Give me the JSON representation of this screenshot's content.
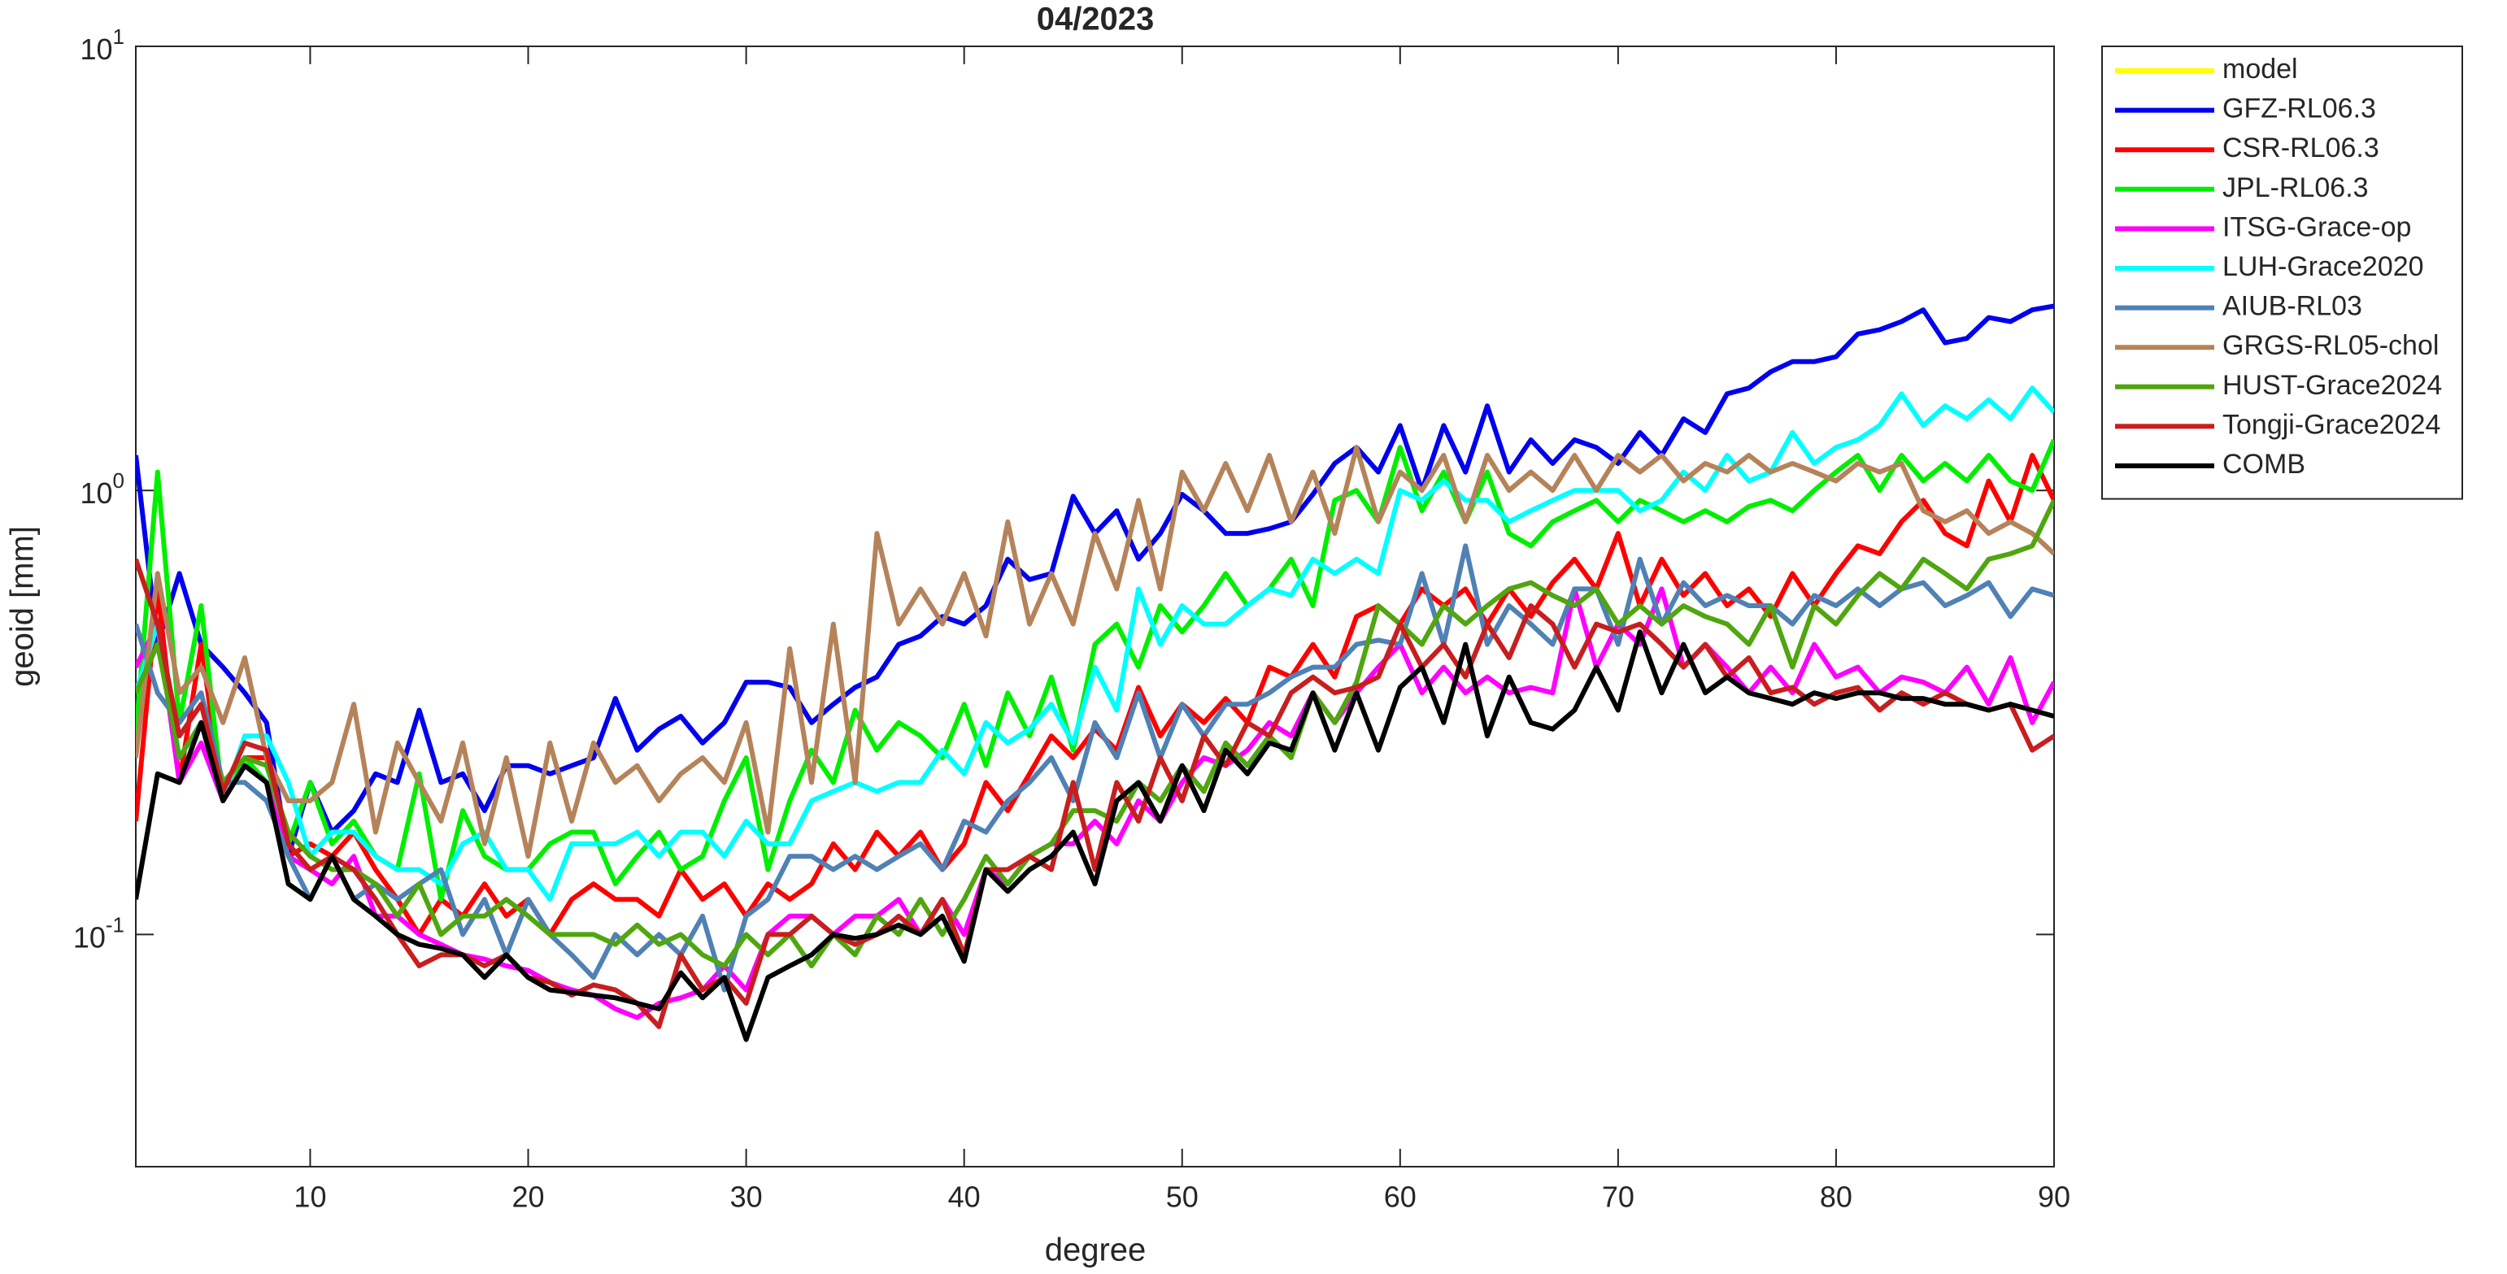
{
  "chart_data": {
    "type": "line",
    "title": "04/2023",
    "x_label": "degree",
    "y_label": "geoid [mm]",
    "log_y": true,
    "legend": "outside-right",
    "x": [
      2,
      3,
      4,
      5,
      6,
      7,
      8,
      9,
      10,
      11,
      12,
      13,
      14,
      15,
      16,
      17,
      18,
      19,
      20,
      21,
      22,
      23,
      24,
      25,
      26,
      27,
      28,
      29,
      30,
      31,
      32,
      33,
      34,
      35,
      36,
      37,
      38,
      39,
      40,
      41,
      42,
      43,
      44,
      45,
      46,
      47,
      48,
      49,
      50,
      51,
      52,
      53,
      54,
      55,
      56,
      57,
      58,
      59,
      60,
      61,
      62,
      63,
      64,
      65,
      66,
      67,
      68,
      69,
      70,
      71,
      72,
      73,
      74,
      75,
      76,
      77,
      78,
      79,
      80,
      81,
      82,
      83,
      84,
      85,
      86,
      87,
      88,
      89,
      90
    ],
    "xlim": [
      2,
      90
    ],
    "xticks": [
      10,
      20,
      30,
      40,
      50,
      60,
      70,
      80,
      90
    ],
    "ylim": [
      0.03,
      10
    ],
    "yticks": [
      {
        "value": 0.1,
        "label": "10^-1"
      },
      {
        "value": 1,
        "label": "10^0"
      },
      {
        "value": 10,
        "label": "10^1"
      }
    ],
    "series": [
      {
        "name": "model",
        "color": "#ffff00",
        "values": [
          null,
          null,
          null,
          null,
          null,
          null,
          null,
          null,
          null,
          null,
          null,
          null,
          null,
          null,
          null,
          null,
          null,
          null,
          null,
          null,
          null,
          null,
          null,
          null,
          null,
          null,
          null,
          null,
          null,
          null,
          null,
          null,
          null,
          null,
          null,
          null,
          null,
          null,
          null,
          null,
          null,
          null,
          null,
          null,
          null,
          null,
          null,
          null,
          null,
          null,
          null,
          null,
          null,
          null,
          null,
          null,
          null,
          null,
          null,
          null,
          null,
          null,
          null,
          null,
          null,
          null,
          null,
          null,
          null,
          null,
          null,
          null,
          null,
          null,
          null,
          null,
          null,
          null,
          null,
          null,
          null,
          null,
          null,
          null,
          null,
          null,
          null,
          null,
          null
        ]
      },
      {
        "name": "GFZ-RL06.3",
        "color": "#0000ee",
        "values": [
          1.2,
          0.45,
          0.65,
          0.45,
          0.4,
          0.35,
          0.3,
          0.15,
          0.22,
          0.17,
          0.19,
          0.23,
          0.22,
          0.32,
          0.22,
          0.23,
          0.19,
          0.24,
          0.24,
          0.23,
          0.24,
          0.25,
          0.34,
          0.26,
          0.29,
          0.31,
          0.27,
          0.3,
          0.37,
          0.37,
          0.36,
          0.3,
          0.33,
          0.36,
          0.38,
          0.45,
          0.47,
          0.52,
          0.5,
          0.55,
          0.7,
          0.63,
          0.65,
          0.97,
          0.8,
          0.9,
          0.7,
          0.8,
          0.98,
          0.9,
          0.8,
          0.8,
          0.82,
          0.85,
          0.98,
          1.15,
          1.25,
          1.1,
          1.4,
          1.0,
          1.4,
          1.1,
          1.55,
          1.1,
          1.3,
          1.15,
          1.3,
          1.25,
          1.15,
          1.35,
          1.2,
          1.45,
          1.35,
          1.65,
          1.7,
          1.85,
          1.95,
          1.95,
          2.0,
          2.25,
          2.3,
          2.4,
          2.55,
          2.15,
          2.2,
          2.45,
          2.4,
          2.55,
          2.6
        ]
      },
      {
        "name": "CSR-RL06.3",
        "color": "#ff0000",
        "values": [
          0.18,
          0.6,
          0.22,
          0.45,
          0.2,
          0.25,
          0.25,
          0.15,
          0.16,
          0.15,
          0.17,
          0.14,
          0.12,
          0.1,
          0.12,
          0.11,
          0.13,
          0.11,
          0.12,
          0.1,
          0.12,
          0.13,
          0.12,
          0.12,
          0.11,
          0.14,
          0.12,
          0.13,
          0.11,
          0.13,
          0.12,
          0.13,
          0.16,
          0.14,
          0.17,
          0.15,
          0.17,
          0.14,
          0.16,
          0.22,
          0.19,
          0.23,
          0.28,
          0.25,
          0.29,
          0.26,
          0.36,
          0.28,
          0.33,
          0.3,
          0.34,
          0.3,
          0.4,
          0.38,
          0.45,
          0.38,
          0.52,
          0.55,
          0.5,
          0.6,
          0.55,
          0.6,
          0.5,
          0.6,
          0.52,
          0.62,
          0.7,
          0.6,
          0.8,
          0.55,
          0.7,
          0.58,
          0.65,
          0.55,
          0.6,
          0.52,
          0.65,
          0.55,
          0.65,
          0.75,
          0.72,
          0.85,
          0.95,
          0.8,
          0.75,
          1.05,
          0.85,
          1.2,
          0.95
        ]
      },
      {
        "name": "JPL-RL06.3",
        "color": "#00ee00",
        "values": [
          0.28,
          1.1,
          0.3,
          0.55,
          0.2,
          0.25,
          0.22,
          0.16,
          0.22,
          0.16,
          0.18,
          0.15,
          0.14,
          0.23,
          0.12,
          0.19,
          0.15,
          0.14,
          0.14,
          0.16,
          0.17,
          0.17,
          0.13,
          0.15,
          0.17,
          0.14,
          0.15,
          0.2,
          0.25,
          0.14,
          0.2,
          0.26,
          0.22,
          0.32,
          0.26,
          0.3,
          0.28,
          0.25,
          0.33,
          0.24,
          0.35,
          0.28,
          0.38,
          0.26,
          0.45,
          0.5,
          0.4,
          0.55,
          0.48,
          0.55,
          0.65,
          0.55,
          0.6,
          0.7,
          0.55,
          0.95,
          1.0,
          0.85,
          1.25,
          0.9,
          1.1,
          0.85,
          1.1,
          0.8,
          0.75,
          0.85,
          0.9,
          0.95,
          0.85,
          0.95,
          0.9,
          0.85,
          0.9,
          0.85,
          0.92,
          0.95,
          0.9,
          1.0,
          1.1,
          1.2,
          1.0,
          1.2,
          1.05,
          1.15,
          1.05,
          1.2,
          1.05,
          1.0,
          1.3
        ]
      },
      {
        "name": "ITSG-Grace-op",
        "color": "#ff00ff",
        "values": [
          0.4,
          0.5,
          0.22,
          0.27,
          0.2,
          0.24,
          0.22,
          0.15,
          0.14,
          0.13,
          0.15,
          0.11,
          0.11,
          0.1,
          0.095,
          0.09,
          0.088,
          0.085,
          0.083,
          0.078,
          0.075,
          0.073,
          0.068,
          0.065,
          0.07,
          0.072,
          0.075,
          0.085,
          0.075,
          0.1,
          0.11,
          0.11,
          0.1,
          0.11,
          0.11,
          0.12,
          0.1,
          0.12,
          0.1,
          0.14,
          0.13,
          0.15,
          0.16,
          0.16,
          0.18,
          0.16,
          0.2,
          0.18,
          0.22,
          0.25,
          0.24,
          0.26,
          0.3,
          0.28,
          0.35,
          0.3,
          0.35,
          0.4,
          0.45,
          0.35,
          0.4,
          0.35,
          0.38,
          0.35,
          0.36,
          0.35,
          0.6,
          0.4,
          0.5,
          0.45,
          0.6,
          0.4,
          0.45,
          0.4,
          0.35,
          0.4,
          0.35,
          0.45,
          0.38,
          0.4,
          0.35,
          0.38,
          0.37,
          0.35,
          0.4,
          0.33,
          0.42,
          0.3,
          0.37
        ]
      },
      {
        "name": "LUH-Grace2020",
        "color": "#00ffff",
        "values": [
          0.35,
          0.5,
          0.25,
          0.3,
          0.2,
          0.28,
          0.28,
          0.22,
          0.15,
          0.17,
          0.17,
          0.15,
          0.14,
          0.14,
          0.13,
          0.16,
          0.17,
          0.14,
          0.14,
          0.12,
          0.16,
          0.16,
          0.16,
          0.17,
          0.15,
          0.17,
          0.17,
          0.15,
          0.18,
          0.16,
          0.16,
          0.2,
          0.21,
          0.22,
          0.21,
          0.22,
          0.22,
          0.26,
          0.23,
          0.3,
          0.27,
          0.29,
          0.33,
          0.27,
          0.4,
          0.32,
          0.6,
          0.45,
          0.55,
          0.5,
          0.5,
          0.55,
          0.6,
          0.58,
          0.7,
          0.65,
          0.7,
          0.65,
          1.0,
          0.95,
          1.05,
          0.95,
          0.95,
          0.85,
          0.9,
          0.95,
          1.0,
          1.0,
          1.0,
          0.9,
          0.95,
          1.1,
          1.0,
          1.2,
          1.05,
          1.1,
          1.35,
          1.15,
          1.25,
          1.3,
          1.4,
          1.65,
          1.4,
          1.55,
          1.45,
          1.6,
          1.45,
          1.7,
          1.5
        ]
      },
      {
        "name": "AIUB-RL03",
        "color": "#4f81b5",
        "values": [
          0.5,
          0.35,
          0.3,
          0.35,
          0.22,
          0.22,
          0.2,
          0.15,
          0.12,
          0.15,
          0.12,
          0.13,
          0.12,
          0.13,
          0.14,
          0.1,
          0.12,
          0.09,
          0.12,
          0.1,
          0.09,
          0.08,
          0.1,
          0.09,
          0.1,
          0.09,
          0.11,
          0.075,
          0.11,
          0.12,
          0.15,
          0.15,
          0.14,
          0.15,
          0.14,
          0.15,
          0.16,
          0.14,
          0.18,
          0.17,
          0.2,
          0.22,
          0.25,
          0.2,
          0.3,
          0.25,
          0.35,
          0.25,
          0.33,
          0.28,
          0.33,
          0.33,
          0.35,
          0.38,
          0.4,
          0.4,
          0.45,
          0.46,
          0.45,
          0.65,
          0.45,
          0.75,
          0.45,
          0.55,
          0.5,
          0.45,
          0.6,
          0.6,
          0.45,
          0.7,
          0.5,
          0.62,
          0.55,
          0.58,
          0.55,
          0.55,
          0.5,
          0.58,
          0.55,
          0.6,
          0.55,
          0.6,
          0.62,
          0.55,
          0.58,
          0.62,
          0.52,
          0.6,
          0.58
        ]
      },
      {
        "name": "GRGS-RL05-chol",
        "color": "#b5835a",
        "values": [
          0.25,
          0.65,
          0.35,
          0.4,
          0.3,
          0.42,
          0.25,
          0.2,
          0.2,
          0.22,
          0.33,
          0.17,
          0.27,
          0.22,
          0.18,
          0.27,
          0.16,
          0.25,
          0.15,
          0.27,
          0.18,
          0.27,
          0.22,
          0.24,
          0.2,
          0.23,
          0.25,
          0.22,
          0.3,
          0.17,
          0.44,
          0.22,
          0.5,
          0.22,
          0.8,
          0.5,
          0.6,
          0.5,
          0.65,
          0.47,
          0.85,
          0.5,
          0.65,
          0.5,
          0.8,
          0.6,
          0.95,
          0.6,
          1.1,
          0.9,
          1.15,
          0.9,
          1.2,
          0.85,
          1.1,
          0.8,
          1.25,
          0.85,
          1.1,
          1.0,
          1.2,
          0.85,
          1.2,
          1.0,
          1.1,
          1.0,
          1.2,
          1.0,
          1.2,
          1.1,
          1.2,
          1.05,
          1.15,
          1.1,
          1.2,
          1.1,
          1.15,
          1.1,
          1.05,
          1.15,
          1.1,
          1.15,
          0.9,
          0.85,
          0.9,
          0.8,
          0.85,
          0.8,
          0.72
        ]
      },
      {
        "name": "HUST-Grace2024",
        "color": "#4fa60f",
        "values": [
          0.35,
          0.45,
          0.25,
          0.3,
          0.22,
          0.25,
          0.24,
          0.17,
          0.15,
          0.14,
          0.14,
          0.13,
          0.11,
          0.13,
          0.1,
          0.11,
          0.11,
          0.12,
          0.11,
          0.1,
          0.1,
          0.1,
          0.095,
          0.105,
          0.095,
          0.1,
          0.09,
          0.085,
          0.1,
          0.09,
          0.1,
          0.085,
          0.1,
          0.09,
          0.11,
          0.1,
          0.12,
          0.1,
          0.12,
          0.15,
          0.13,
          0.15,
          0.16,
          0.19,
          0.19,
          0.18,
          0.22,
          0.2,
          0.24,
          0.21,
          0.27,
          0.24,
          0.28,
          0.25,
          0.35,
          0.3,
          0.37,
          0.55,
          0.5,
          0.45,
          0.55,
          0.5,
          0.55,
          0.6,
          0.62,
          0.58,
          0.55,
          0.6,
          0.5,
          0.55,
          0.5,
          0.55,
          0.52,
          0.5,
          0.45,
          0.55,
          0.4,
          0.55,
          0.5,
          0.58,
          0.65,
          0.6,
          0.7,
          0.65,
          0.6,
          0.7,
          0.72,
          0.75,
          0.95
        ]
      },
      {
        "name": "Tongji-Grace2024",
        "color": "#c81e1e",
        "values": [
          0.7,
          0.5,
          0.28,
          0.33,
          0.21,
          0.27,
          0.26,
          0.16,
          0.14,
          0.15,
          0.14,
          0.12,
          0.1,
          0.085,
          0.09,
          0.09,
          0.085,
          0.09,
          0.08,
          0.078,
          0.073,
          0.077,
          0.075,
          0.07,
          0.062,
          0.09,
          0.075,
          0.08,
          0.07,
          0.1,
          0.1,
          0.11,
          0.1,
          0.095,
          0.1,
          0.11,
          0.1,
          0.12,
          0.09,
          0.14,
          0.14,
          0.15,
          0.14,
          0.22,
          0.14,
          0.22,
          0.18,
          0.25,
          0.2,
          0.28,
          0.24,
          0.3,
          0.28,
          0.35,
          0.38,
          0.35,
          0.36,
          0.38,
          0.5,
          0.4,
          0.45,
          0.38,
          0.5,
          0.42,
          0.55,
          0.5,
          0.4,
          0.5,
          0.48,
          0.5,
          0.45,
          0.4,
          0.45,
          0.38,
          0.42,
          0.35,
          0.36,
          0.33,
          0.35,
          0.36,
          0.32,
          0.35,
          0.33,
          0.35,
          0.33,
          0.32,
          0.33,
          0.26,
          0.28
        ]
      },
      {
        "name": "COMB",
        "color": "#000000",
        "values": [
          0.12,
          0.23,
          0.22,
          0.3,
          0.2,
          0.24,
          0.22,
          0.13,
          0.12,
          0.15,
          0.12,
          0.11,
          0.1,
          0.095,
          0.093,
          0.09,
          0.08,
          0.09,
          0.08,
          0.075,
          0.074,
          0.073,
          0.072,
          0.07,
          0.068,
          0.082,
          0.072,
          0.08,
          0.058,
          0.08,
          0.085,
          0.09,
          0.1,
          0.098,
          0.1,
          0.105,
          0.1,
          0.11,
          0.087,
          0.14,
          0.125,
          0.14,
          0.15,
          0.17,
          0.13,
          0.2,
          0.22,
          0.18,
          0.24,
          0.19,
          0.26,
          0.23,
          0.27,
          0.26,
          0.35,
          0.26,
          0.35,
          0.26,
          0.36,
          0.4,
          0.3,
          0.45,
          0.28,
          0.38,
          0.3,
          0.29,
          0.32,
          0.4,
          0.32,
          0.48,
          0.35,
          0.45,
          0.35,
          0.38,
          0.35,
          0.34,
          0.33,
          0.35,
          0.34,
          0.35,
          0.35,
          0.34,
          0.34,
          0.33,
          0.33,
          0.32,
          0.33,
          0.32,
          0.31
        ]
      }
    ]
  }
}
